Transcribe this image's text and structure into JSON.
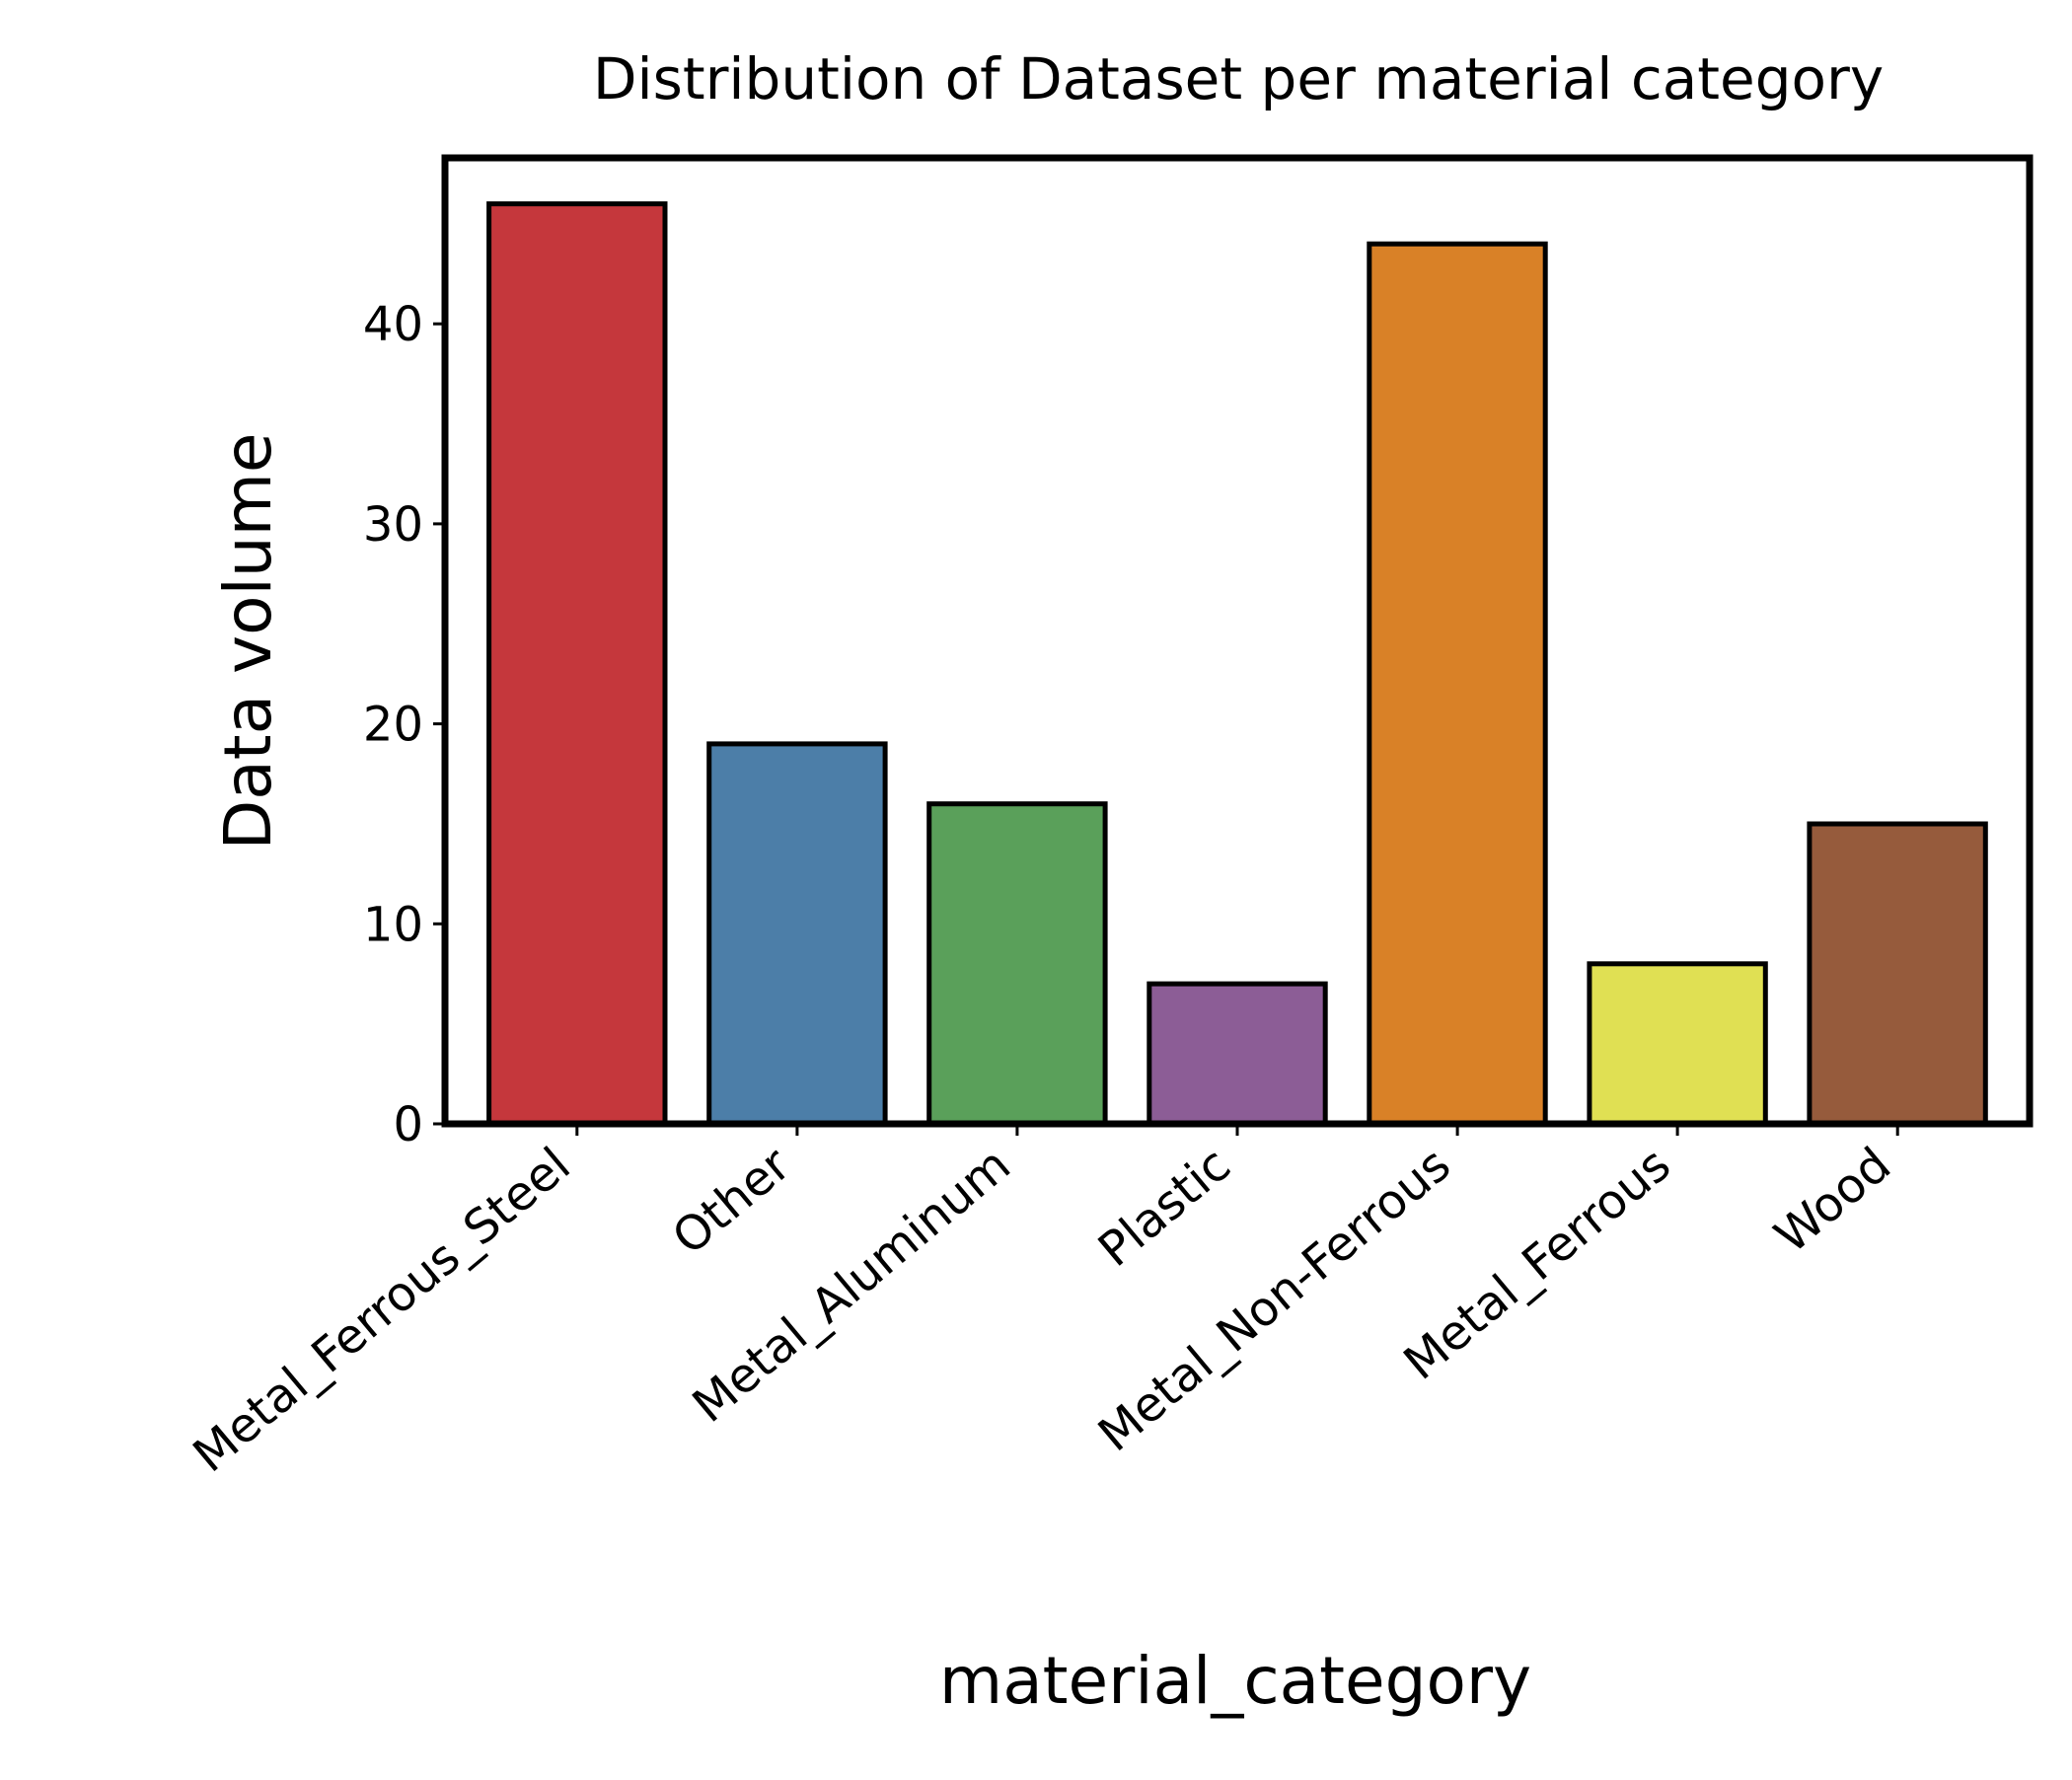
{
  "chart_data": {
    "type": "bar",
    "title": "Distribution of Dataset per material category",
    "xlabel": "material_category",
    "ylabel": "Data volume",
    "categories": [
      "Metal_Ferrous_Steel",
      "Other",
      "Metal_Aluminum",
      "Plastic",
      "Metal_Non-Ferrous",
      "Metal_Ferrous",
      "Wood"
    ],
    "values": [
      46,
      19,
      16,
      7,
      44,
      8,
      15
    ],
    "colors": [
      "#c5373c",
      "#4c7ea8",
      "#5aa05a",
      "#8c5d96",
      "#d98127",
      "#e0e053",
      "#965b3c"
    ],
    "edge_color": "#000000",
    "ylim": [
      0,
      48.3
    ],
    "yticks": [
      0,
      10,
      20,
      30,
      40
    ],
    "grid": false,
    "legend": "none"
  }
}
